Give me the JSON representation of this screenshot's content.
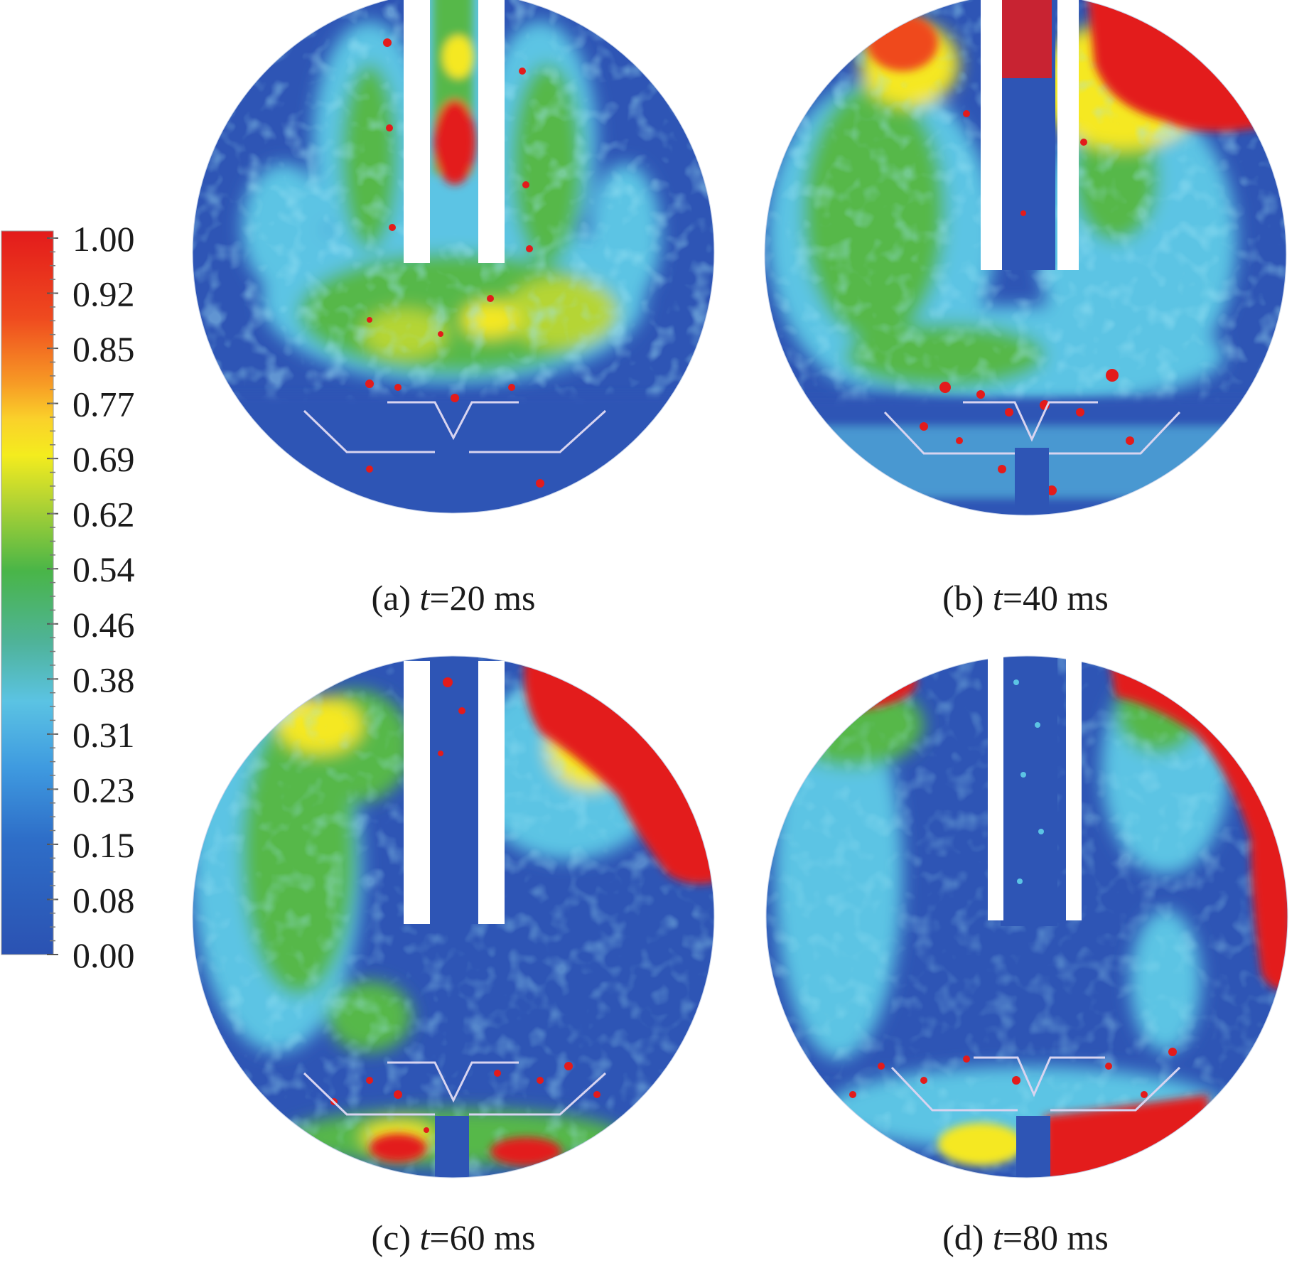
{
  "colorbar": {
    "ticks": [
      "1.00",
      "0.92",
      "0.85",
      "0.77",
      "0.69",
      "0.62",
      "0.54",
      "0.46",
      "0.38",
      "0.31",
      "0.23",
      "0.15",
      "0.08",
      "0.00"
    ],
    "colors": [
      "#e31b1b",
      "#f26a1e",
      "#f9b52a",
      "#f7e81f",
      "#b7d532",
      "#57b848",
      "#4fb8a0",
      "#5bc3e3",
      "#2e7fd0",
      "#2d55b4"
    ]
  },
  "panels": [
    {
      "id": "a",
      "label": "(a)",
      "var": "t",
      "value": "=20 ms"
    },
    {
      "id": "b",
      "label": "(b)",
      "var": "t",
      "value": "=40 ms"
    },
    {
      "id": "c",
      "label": "(c)",
      "var": "t",
      "value": "=60 ms"
    },
    {
      "id": "d",
      "label": "(d)",
      "var": "t",
      "value": "=80 ms"
    }
  ]
}
